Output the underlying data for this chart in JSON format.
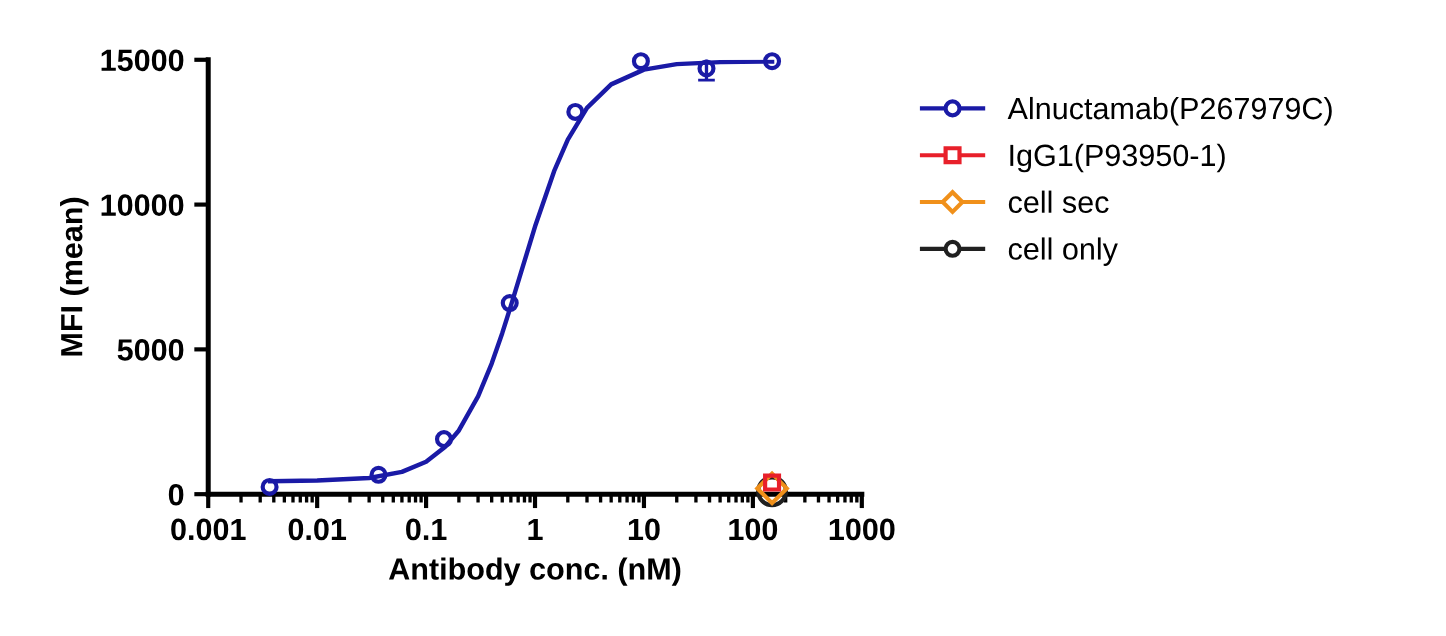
{
  "chart_data": {
    "type": "scatter",
    "xlabel": "Antibody conc. (nM)",
    "ylabel": "MFI (mean)",
    "log": "x",
    "xlim": [
      0.001,
      1000
    ],
    "xticks": [
      0.001,
      0.01,
      0.1,
      1,
      10,
      100,
      1000
    ],
    "ylim": [
      0,
      15000
    ],
    "yticks": [
      0,
      5000,
      10000,
      15000
    ],
    "grid": false,
    "legend": "right",
    "series": [
      {
        "name": "Alnuctamab(P267979C)",
        "marker": "circle",
        "color": "#1a1aa6",
        "x": [
          0.00366,
          0.0366,
          0.146,
          0.586,
          2.344,
          9.375,
          37.5,
          150
        ],
        "values": [
          250,
          670,
          1900,
          6600,
          13200,
          14950,
          14700,
          14950
        ],
        "errors": [
          null,
          null,
          null,
          null,
          null,
          null,
          400,
          null
        ]
      },
      {
        "type": "line",
        "marker": "none",
        "color": "#1a1aa6",
        "x": [
          0.0037,
          0.01,
          0.03,
          0.06,
          0.1,
          0.15,
          0.2,
          0.3,
          0.4,
          0.5,
          0.6,
          0.75,
          1,
          1.5,
          2,
          3,
          5,
          10,
          20,
          50,
          150
        ],
        "values": [
          450,
          470,
          560,
          770,
          1120,
          1640,
          2200,
          3380,
          4510,
          5560,
          6500,
          7700,
          9240,
          11160,
          12240,
          13340,
          14150,
          14660,
          14850,
          14920,
          14940
        ]
      },
      {
        "name": "IgG1(P93950-1)",
        "marker": "square",
        "color": "#e8202a",
        "x": [
          150
        ],
        "values": [
          400
        ]
      },
      {
        "name": "cell sec",
        "marker": "diamond",
        "color": "#f0901a",
        "x": [
          150
        ],
        "values": [
          200
        ]
      },
      {
        "name": "cell only",
        "marker": "circle",
        "color": "#202020",
        "x": [
          150
        ],
        "values": [
          100
        ]
      }
    ]
  }
}
